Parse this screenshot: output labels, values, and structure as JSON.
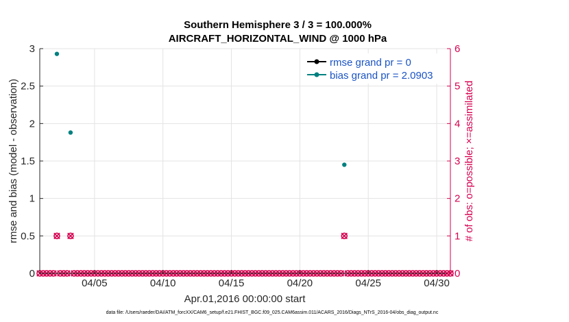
{
  "chart_data": {
    "type": "line",
    "title_line1": "Southern Hemisphere 3 / 3 = 100.000%",
    "title_line2": "AIRCRAFT_HORIZONTAL_WIND @ 1000 hPa",
    "xlabel": "Apr.01,2016 00:00:00 start",
    "ylabel": "rmse and bias (model - observation)",
    "ylabel_right": "# of obs: o=possible; ×=assimilated",
    "x_ticks": [
      "04/05",
      "04/10",
      "04/15",
      "04/20",
      "04/25",
      "04/30"
    ],
    "x_tick_values": [
      5,
      10,
      15,
      20,
      25,
      30
    ],
    "xlim": [
      1,
      31
    ],
    "ylim": [
      0,
      3
    ],
    "y_ticks": [
      "0",
      "0.5",
      "1",
      "1.5",
      "2",
      "2.5",
      "3"
    ],
    "ylim_right": [
      0,
      6
    ],
    "y_ticks_right": [
      "0",
      "1",
      "2",
      "3",
      "4",
      "5",
      "6"
    ],
    "grid": true,
    "legend_position": "top-right",
    "legend": [
      "rmse grand pr = 0",
      "bias grand pr = 2.0903"
    ],
    "series": [
      {
        "name": "rmse grand pr = 0",
        "color": "#000000",
        "x": [],
        "values": []
      },
      {
        "name": "bias grand pr = 2.0903",
        "color": "#008080",
        "x": [
          2.25,
          3.25,
          23.25
        ],
        "values": [
          2.93,
          1.88,
          1.45
        ]
      }
    ],
    "obs_counts": {
      "color": "#d6004f",
      "x_start": 1.0,
      "x_step": 0.25,
      "count": 121,
      "nonzero": [
        {
          "x": 2.25,
          "count": 1
        },
        {
          "x": 3.25,
          "count": 1
        },
        {
          "x": 23.25,
          "count": 1
        }
      ]
    },
    "footer": "data file: /Users/raeder/DAI/ATM_forcXX/CAM6_setup/f.e21.FHIST_BGC.f09_025.CAM6assim.011/ACARS_2016/Diags_NTrS_2016-04/obs_diag_output.nc"
  }
}
